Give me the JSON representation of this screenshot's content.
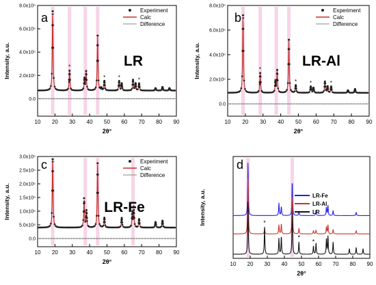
{
  "chart_data": [
    {
      "panel_label": "a",
      "sample": "LR",
      "type": "line",
      "xlabel": "2θ°",
      "ylabel": "Intensity, a.u.",
      "xlim": [
        10,
        90
      ],
      "ylim": [
        -150000.0,
        800000.0
      ],
      "x_ticks": [
        10,
        20,
        30,
        40,
        50,
        60,
        70,
        80,
        90
      ],
      "y_ticks": [
        0.0,
        200000.0,
        400000.0,
        600000.0,
        800000.0
      ],
      "y_tick_labels": [
        "0.0",
        "2.0x10⁵",
        "4.0x10⁵",
        "6.0x10⁵",
        "8.0x10⁵"
      ],
      "legend": [
        "Experiment",
        "Calc",
        "Difference"
      ],
      "legend_position": "top-right",
      "baseline": 70000.0,
      "difference_offset": 0,
      "peaks": [
        [
          18.7,
          750000.0
        ],
        [
          28.4,
          240000.0
        ],
        [
          37.0,
          170000.0
        ],
        [
          38.0,
          230000.0
        ],
        [
          44.6,
          540000.0
        ],
        [
          46.7,
          90000.0
        ],
        [
          48.5,
          150000.0
        ],
        [
          57.0,
          150000.0
        ],
        [
          58.5,
          130000.0
        ],
        [
          65.0,
          160000.0
        ],
        [
          66.5,
          130000.0
        ],
        [
          68.5,
          130000.0
        ],
        [
          78.0,
          90000.0
        ],
        [
          82.0,
          100000.0
        ],
        [
          86.0,
          90000.0
        ]
      ],
      "starred_peaks": [
        28.4,
        48.5,
        57.0,
        68.5
      ],
      "highlighted_bands": [
        18.7,
        28.4,
        37.5,
        44.6
      ]
    },
    {
      "panel_label": "b",
      "sample": "LR-Al",
      "type": "line",
      "xlabel": "2θ°",
      "ylabel": "Intensity, a.u.",
      "xlim": [
        10,
        90
      ],
      "ylim": [
        -100000.0,
        800000.0
      ],
      "x_ticks": [
        10,
        20,
        30,
        40,
        50,
        60,
        70,
        80,
        90
      ],
      "y_ticks": [
        0.0,
        200000.0,
        400000.0,
        600000.0,
        800000.0
      ],
      "y_tick_labels": [
        "0.0",
        "2.0x10⁵",
        "4.0x10⁵",
        "6.0x10⁵",
        "8.0x10⁵"
      ],
      "legend": [
        "Experiment",
        "Calc",
        "Difference"
      ],
      "legend_position": "top-right",
      "baseline": 90000.0,
      "difference_offset": 0,
      "peaks": [
        [
          18.7,
          720000.0
        ],
        [
          28.4,
          250000.0
        ],
        [
          37.0,
          180000.0
        ],
        [
          38.0,
          270000.0
        ],
        [
          44.6,
          520000.0
        ],
        [
          48.5,
          150000.0
        ],
        [
          57.0,
          140000.0
        ],
        [
          58.5,
          130000.0
        ],
        [
          65.0,
          180000.0
        ],
        [
          66.5,
          140000.0
        ],
        [
          68.5,
          140000.0
        ],
        [
          78.0,
          110000.0
        ],
        [
          82.0,
          120000.0
        ]
      ],
      "starred_peaks": [
        28.4,
        48.5,
        57.0,
        68.5
      ],
      "highlighted_bands": [
        18.7,
        28.4,
        37.5,
        44.6
      ]
    },
    {
      "panel_label": "c",
      "sample": "LR-Fe",
      "type": "line",
      "xlabel": "2θ°",
      "ylabel": "Intensity, a.u.",
      "xlim": [
        10,
        90
      ],
      "ylim": [
        -30000.0,
        300000.0
      ],
      "x_ticks": [
        10,
        20,
        30,
        40,
        50,
        60,
        70,
        80,
        90
      ],
      "y_ticks": [
        0.0,
        50000.0,
        100000.0,
        150000.0,
        200000.0,
        250000.0,
        300000.0
      ],
      "y_tick_labels": [
        "0.0",
        "5.0x10⁴",
        "1.0x10⁵",
        "1.5x10⁵",
        "2.0x10⁵",
        "2.5x10⁵",
        "3.0x10⁵"
      ],
      "legend": [
        "Experiment",
        "Calc",
        "Difference"
      ],
      "legend_position": "top-right",
      "baseline": 40000.0,
      "difference_offset": 0,
      "peaks": [
        [
          18.7,
          290000.0
        ],
        [
          36.8,
          145000.0
        ],
        [
          38.2,
          100000.0
        ],
        [
          44.6,
          275000.0
        ],
        [
          48.5,
          75000.0
        ],
        [
          58.5,
          75000.0
        ],
        [
          64.6,
          95000.0
        ],
        [
          65.5,
          100000.0
        ],
        [
          68.5,
          70000.0
        ],
        [
          78.0,
          60000.0
        ],
        [
          82.0,
          65000.0
        ]
      ],
      "starred_peaks": [
        65.5
      ],
      "highlighted_bands": [
        18.7,
        37.5,
        44.6,
        65.0
      ]
    },
    {
      "panel_label": "d",
      "type": "line",
      "xlabel": "2θ°",
      "ylabel": "Intensity, a.u.",
      "xlim": [
        10,
        90
      ],
      "x_ticks": [
        10,
        20,
        30,
        40,
        50,
        60,
        70,
        80,
        90
      ],
      "y_ticks": [],
      "legend_position": "center-right",
      "starred_peaks": [
        28.4,
        48.5,
        57.0
      ],
      "highlighted_bands": [
        18.7,
        44.6
      ],
      "series": [
        {
          "name": "LR-Fe",
          "color": "#1f1fe6",
          "offset": 0.42,
          "peaks": [
            [
              18.7,
              0.95
            ],
            [
              36.8,
              0.22
            ],
            [
              38.2,
              0.16
            ],
            [
              44.6,
              0.62
            ],
            [
              48.5,
              0.08
            ],
            [
              58.5,
              0.1
            ],
            [
              64.6,
              0.15
            ],
            [
              65.5,
              0.18
            ],
            [
              68.5,
              0.09
            ],
            [
              82.0,
              0.06
            ]
          ]
        },
        {
          "name": "LR-Al",
          "color": "#c8302a",
          "offset": 0.24,
          "peaks": [
            [
              18.7,
              1.0
            ],
            [
              28.4,
              0.1
            ],
            [
              36.8,
              0.16
            ],
            [
              38.2,
              0.18
            ],
            [
              44.6,
              0.7
            ],
            [
              48.5,
              0.1
            ],
            [
              57.0,
              0.06
            ],
            [
              58.5,
              0.07
            ],
            [
              64.6,
              0.13
            ],
            [
              65.5,
              0.16
            ],
            [
              68.5,
              0.08
            ],
            [
              82.0,
              0.06
            ]
          ]
        },
        {
          "name": "LR",
          "color": "#111111",
          "offset": 0.04,
          "peaks": [
            [
              18.7,
              0.95
            ],
            [
              28.4,
              0.48
            ],
            [
              36.8,
              0.28
            ],
            [
              38.2,
              0.32
            ],
            [
              44.6,
              0.8
            ],
            [
              48.5,
              0.22
            ],
            [
              57.0,
              0.15
            ],
            [
              58.5,
              0.2
            ],
            [
              64.6,
              0.28
            ],
            [
              65.5,
              0.32
            ],
            [
              68.5,
              0.22
            ],
            [
              78.0,
              0.1
            ],
            [
              82.0,
              0.12
            ],
            [
              86.0,
              0.1
            ]
          ]
        }
      ]
    }
  ]
}
